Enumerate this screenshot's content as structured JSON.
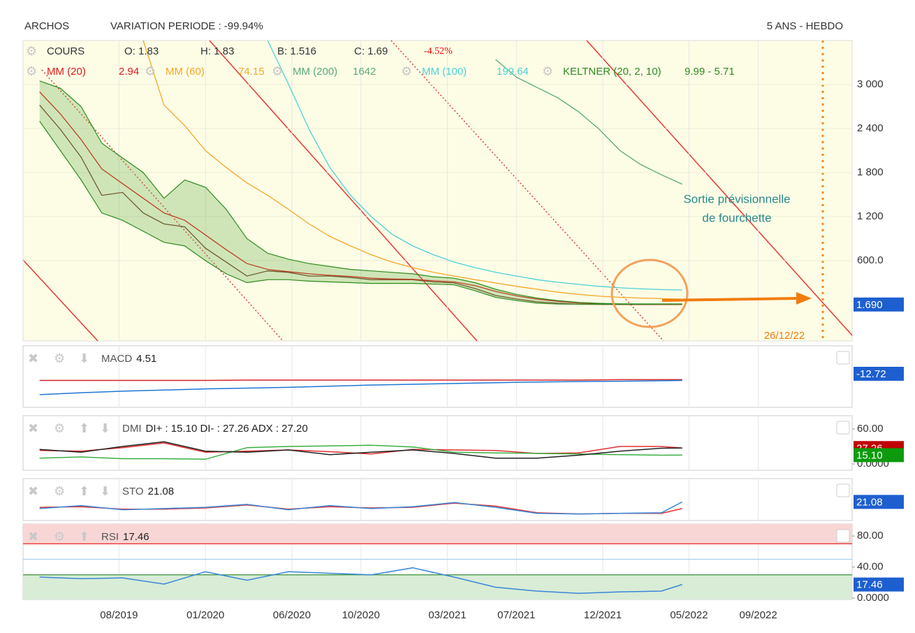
{
  "header": {
    "name": "ARCHOS",
    "variation": "VARIATION PERIODE : -99.94%",
    "period": "5 ANS - HEBDO"
  },
  "annotation": {
    "lines": [
      "Sortie prévisionnelle",
      "de fourchette"
    ],
    "date": "26/12/22"
  },
  "chart_data": [
    {
      "type": "line",
      "legend_top": {
        "name": "COURS",
        "ohlc": [
          "O: 1.83",
          "H: 1.83",
          "B: 1.516",
          "C: 1.69"
        ],
        "change": "-4.52%"
      },
      "xlim": [
        2019.12,
        2023.12
      ],
      "xticks": [
        {
          "value": 2019.583,
          "label": "08/2019"
        },
        {
          "value": 2020.0,
          "label": "01/2020"
        },
        {
          "value": 2020.417,
          "label": "06/2020"
        },
        {
          "value": 2020.75,
          "label": "10/2020"
        },
        {
          "value": 2021.167,
          "label": "03/2021"
        },
        {
          "value": 2021.5,
          "label": "07/2021"
        },
        {
          "value": 2021.917,
          "label": "12/2021"
        },
        {
          "value": 2022.333,
          "label": "05/2022"
        },
        {
          "value": 2022.667,
          "label": "09/2022"
        }
      ],
      "ylim": [
        -495,
        3600
      ],
      "yticks": [
        {
          "value": 3000,
          "label": "3 000"
        },
        {
          "value": 2400,
          "label": "2 400"
        },
        {
          "value": 1800,
          "label": "1 800"
        },
        {
          "value": 1200,
          "label": "1 200"
        },
        {
          "value": 600,
          "label": "600.0"
        }
      ],
      "last_box": {
        "value": 1.69,
        "label": "1.690",
        "color": "#1e5fd0"
      },
      "series": [
        {
          "name": "COURS",
          "color": "#7a3b2e",
          "x": [
            2019.2,
            2019.3,
            2019.4,
            2019.5,
            2019.6,
            2019.7,
            2019.8,
            2019.9,
            2020.0,
            2020.1,
            2020.2,
            2020.3,
            2020.4,
            2020.5,
            2020.6,
            2020.7,
            2020.8,
            2020.9,
            2021.0,
            2021.1,
            2021.2,
            2021.3,
            2021.4,
            2021.5,
            2021.6,
            2021.7,
            2021.8,
            2021.9,
            2022.0,
            2022.1,
            2022.2,
            2022.3
          ],
          "values": [
            2720,
            2390,
            2010,
            1490,
            1530,
            1250,
            1100,
            1060,
            770,
            580,
            390,
            460,
            440,
            390,
            390,
            370,
            340,
            340,
            340,
            310,
            295,
            220,
            125,
            76,
            38,
            19,
            5,
            3,
            2,
            2,
            2,
            1.69
          ]
        },
        {
          "name": "MM (20)",
          "last_label": "2.94",
          "color": "#e31a1c",
          "x": [
            2019.2,
            2019.3,
            2019.4,
            2019.5,
            2019.6,
            2019.7,
            2019.8,
            2019.9,
            2020.0,
            2020.1,
            2020.2,
            2020.3,
            2020.4,
            2020.5,
            2020.6,
            2020.7,
            2020.8,
            2020.9,
            2021.0,
            2021.1,
            2021.2,
            2021.3,
            2021.4,
            2021.5,
            2021.6,
            2021.7,
            2021.8,
            2021.9,
            2022.0,
            2022.1,
            2022.2,
            2022.3
          ],
          "values": [
            2900,
            2600,
            2250,
            1850,
            1650,
            1450,
            1250,
            1150,
            950,
            750,
            560,
            480,
            450,
            420,
            400,
            385,
            360,
            350,
            345,
            325,
            310,
            260,
            180,
            120,
            75,
            45,
            22,
            12,
            6,
            4,
            3,
            2.94
          ]
        },
        {
          "name": "MM (60)",
          "last_label": "74.15",
          "color": "#f5a623",
          "x": [
            2019.7,
            2019.8,
            2019.9,
            2020.0,
            2020.1,
            2020.2,
            2020.3,
            2020.4,
            2020.5,
            2020.6,
            2020.7,
            2020.8,
            2020.9,
            2021.0,
            2021.1,
            2021.2,
            2021.3,
            2021.4,
            2021.5,
            2021.6,
            2021.7,
            2021.8,
            2021.9,
            2022.0,
            2022.1,
            2022.2,
            2022.3
          ],
          "values": [
            3600,
            2720,
            2440,
            2100,
            1870,
            1660,
            1490,
            1300,
            1100,
            930,
            800,
            680,
            580,
            505,
            440,
            390,
            340,
            295,
            250,
            210,
            170,
            140,
            115,
            100,
            90,
            82,
            74.15
          ]
        },
        {
          "name": "MM (200)",
          "last_label": "1642",
          "color": "#5aaa78",
          "x": [
            2021.4,
            2021.5,
            2021.6,
            2021.7,
            2021.8,
            2021.9,
            2022.0,
            2022.1,
            2022.2,
            2022.3
          ],
          "values": [
            3340,
            3100,
            2960,
            2820,
            2630,
            2390,
            2100,
            1910,
            1770,
            1642
          ]
        },
        {
          "name": "MM (100)",
          "last_label": "199.64",
          "color": "#4dd0d6",
          "x": [
            2020.3,
            2020.4,
            2020.5,
            2020.6,
            2020.7,
            2020.8,
            2020.9,
            2021.0,
            2021.1,
            2021.2,
            2021.3,
            2021.4,
            2021.5,
            2021.6,
            2021.7,
            2021.8,
            2021.9,
            2022.0,
            2022.1,
            2022.2,
            2022.3
          ],
          "values": [
            3600,
            3010,
            2390,
            1870,
            1490,
            1200,
            960,
            800,
            680,
            580,
            505,
            440,
            390,
            340,
            305,
            276,
            250,
            230,
            215,
            205,
            199.64
          ]
        },
        {
          "name": "KELTNER (20, 2, 10)",
          "last_label": "9.99 - 5.71",
          "color": "#2e8b1e",
          "band": true,
          "x": [
            2019.2,
            2019.3,
            2019.4,
            2019.5,
            2019.6,
            2019.7,
            2019.8,
            2019.9,
            2020.0,
            2020.1,
            2020.2,
            2020.3,
            2020.4,
            2020.5,
            2020.6,
            2020.7,
            2020.8,
            2020.9,
            2021.0,
            2021.1,
            2021.2,
            2021.3,
            2021.4,
            2021.5,
            2021.6,
            2021.7,
            2021.8,
            2021.9,
            2022.0,
            2022.1,
            2022.2,
            2022.3
          ],
          "upper": [
            3050,
            2950,
            2700,
            2200,
            2000,
            1800,
            1450,
            1700,
            1600,
            1300,
            900,
            700,
            620,
            560,
            520,
            480,
            460,
            440,
            420,
            380,
            360,
            300,
            210,
            140,
            90,
            55,
            30,
            18,
            12,
            10,
            10,
            9.99
          ],
          "lower": [
            2500,
            2100,
            1700,
            1250,
            1150,
            1000,
            850,
            800,
            600,
            420,
            300,
            340,
            340,
            320,
            310,
            300,
            290,
            290,
            290,
            280,
            270,
            190,
            100,
            55,
            20,
            8,
            6,
            6,
            6,
            6,
            6,
            5.71
          ]
        }
      ]
    },
    {
      "type": "line",
      "label": "MACD",
      "value_label": "4.51",
      "ylim": [
        -100,
        60
      ],
      "yticks": [],
      "last_box": {
        "value": -12.72,
        "label": "-12.72",
        "color": "#1e5fd0"
      },
      "series": [
        {
          "color": "#d62728",
          "x": [
            2019.2,
            2019.4,
            2019.6,
            2019.8,
            2020.0,
            2020.2,
            2020.4,
            2020.6,
            2020.8,
            2021.0,
            2021.2,
            2021.4,
            2021.6,
            2021.8,
            2022.0,
            2022.2,
            2022.3
          ],
          "values": [
            -30,
            -30,
            -30,
            -30,
            -30,
            -29,
            -29,
            -29,
            -29,
            -29,
            -29,
            -29,
            -29,
            -29,
            -28,
            -28,
            -28
          ]
        },
        {
          "color": "#1f77d4",
          "x": [
            2019.2,
            2019.4,
            2019.6,
            2019.8,
            2020.0,
            2020.2,
            2020.4,
            2020.6,
            2020.8,
            2021.0,
            2021.2,
            2021.4,
            2021.6,
            2021.8,
            2022.0,
            2022.2,
            2022.3
          ],
          "values": [
            -67,
            -62,
            -58,
            -55,
            -52,
            -50,
            -48,
            -45,
            -42,
            -40,
            -38,
            -36,
            -34,
            -33,
            -32,
            -31,
            -30
          ]
        }
      ]
    },
    {
      "type": "line",
      "label": "DMI",
      "value_label": "DI+ : 15.10 DI- : 27.26 ADX : 27.20",
      "ylim": [
        -10.8,
        82.8
      ],
      "yticks": [
        {
          "value": 60,
          "label": "60.00"
        },
        {
          "value": 0,
          "label": "0.0000"
        }
      ],
      "last_boxes": [
        {
          "value": 27.26,
          "label": "27.26",
          "color": "#c00000"
        },
        {
          "value": 15.1,
          "label": "15.10",
          "color": "#0e9a0e"
        }
      ],
      "series": [
        {
          "color": "#e03030",
          "x": [
            2019.2,
            2019.4,
            2019.6,
            2019.8,
            2020.0,
            2020.2,
            2020.4,
            2020.6,
            2020.8,
            2021.0,
            2021.2,
            2021.4,
            2021.6,
            2021.8,
            2022.0,
            2022.2,
            2022.3
          ],
          "values": [
            23,
            22,
            28,
            36,
            20,
            22,
            24,
            21,
            17,
            25,
            24,
            23,
            18,
            19,
            30,
            30,
            27.26
          ]
        },
        {
          "color": "#3cb043",
          "x": [
            2019.2,
            2019.4,
            2019.6,
            2019.8,
            2020.0,
            2020.2,
            2020.4,
            2020.6,
            2020.8,
            2021.0,
            2021.2,
            2021.4,
            2021.6,
            2021.8,
            2022.0,
            2022.2,
            2022.3
          ],
          "values": [
            10,
            12,
            9,
            9,
            8,
            28,
            30,
            31,
            32,
            29,
            20,
            19,
            18,
            17,
            16,
            15,
            15.1
          ]
        },
        {
          "color": "#222222",
          "x": [
            2019.2,
            2019.4,
            2019.6,
            2019.8,
            2020.0,
            2020.2,
            2020.4,
            2020.6,
            2020.8,
            2021.0,
            2021.2,
            2021.4,
            2021.6,
            2021.8,
            2022.0,
            2022.2,
            2022.3
          ],
          "values": [
            25,
            20,
            30,
            38,
            22,
            20,
            24,
            16,
            20,
            24,
            18,
            10,
            10,
            15,
            22,
            27,
            27.2
          ]
        }
      ]
    },
    {
      "type": "line",
      "label": "STO",
      "value_label": "21.08",
      "ylim": [
        -10,
        60
      ],
      "yticks": [],
      "last_box": {
        "value": 21.08,
        "label": "21.08",
        "color": "#1e5fd0"
      },
      "series": [
        {
          "color": "#e03030",
          "x": [
            2019.2,
            2019.4,
            2019.6,
            2019.8,
            2020.0,
            2020.2,
            2020.4,
            2020.6,
            2020.8,
            2021.0,
            2021.2,
            2021.4,
            2021.6,
            2021.8,
            2022.0,
            2022.2,
            2022.3
          ],
          "values": [
            12,
            13,
            9,
            9,
            11,
            16,
            9,
            13,
            11,
            12,
            19,
            14,
            3,
            1,
            2,
            2,
            10
          ]
        },
        {
          "color": "#3a86d8",
          "x": [
            2019.2,
            2019.4,
            2019.6,
            2019.8,
            2020.0,
            2020.2,
            2020.4,
            2020.6,
            2020.8,
            2021.0,
            2021.2,
            2021.4,
            2021.6,
            2021.8,
            2022.0,
            2022.2,
            2022.3
          ],
          "values": [
            10,
            15,
            8,
            10,
            12,
            17,
            8,
            15,
            10,
            13,
            20,
            12,
            2,
            1,
            2,
            3,
            21.08
          ]
        }
      ]
    },
    {
      "type": "line",
      "label": "RSI",
      "value_label": "17.46",
      "ylim": [
        -1.8,
        95.5
      ],
      "yticks": [
        {
          "value": 80,
          "label": "80.00"
        },
        {
          "value": 40,
          "label": "40.00"
        },
        {
          "value": 0,
          "label": "0.0000"
        }
      ],
      "levels": [
        70,
        50,
        30
      ],
      "last_box": {
        "value": 17.46,
        "label": "17.46",
        "color": "#1e5fd0"
      },
      "series": [
        {
          "color": "#3a86d8",
          "x": [
            2019.2,
            2019.4,
            2019.6,
            2019.8,
            2020.0,
            2020.2,
            2020.4,
            2020.6,
            2020.8,
            2021.0,
            2021.2,
            2021.4,
            2021.6,
            2021.8,
            2022.0,
            2022.2,
            2022.3
          ],
          "values": [
            27,
            25,
            26,
            18,
            34,
            23,
            34,
            32,
            30,
            39,
            27,
            14,
            9,
            6,
            8,
            9,
            17.46
          ]
        }
      ]
    }
  ]
}
